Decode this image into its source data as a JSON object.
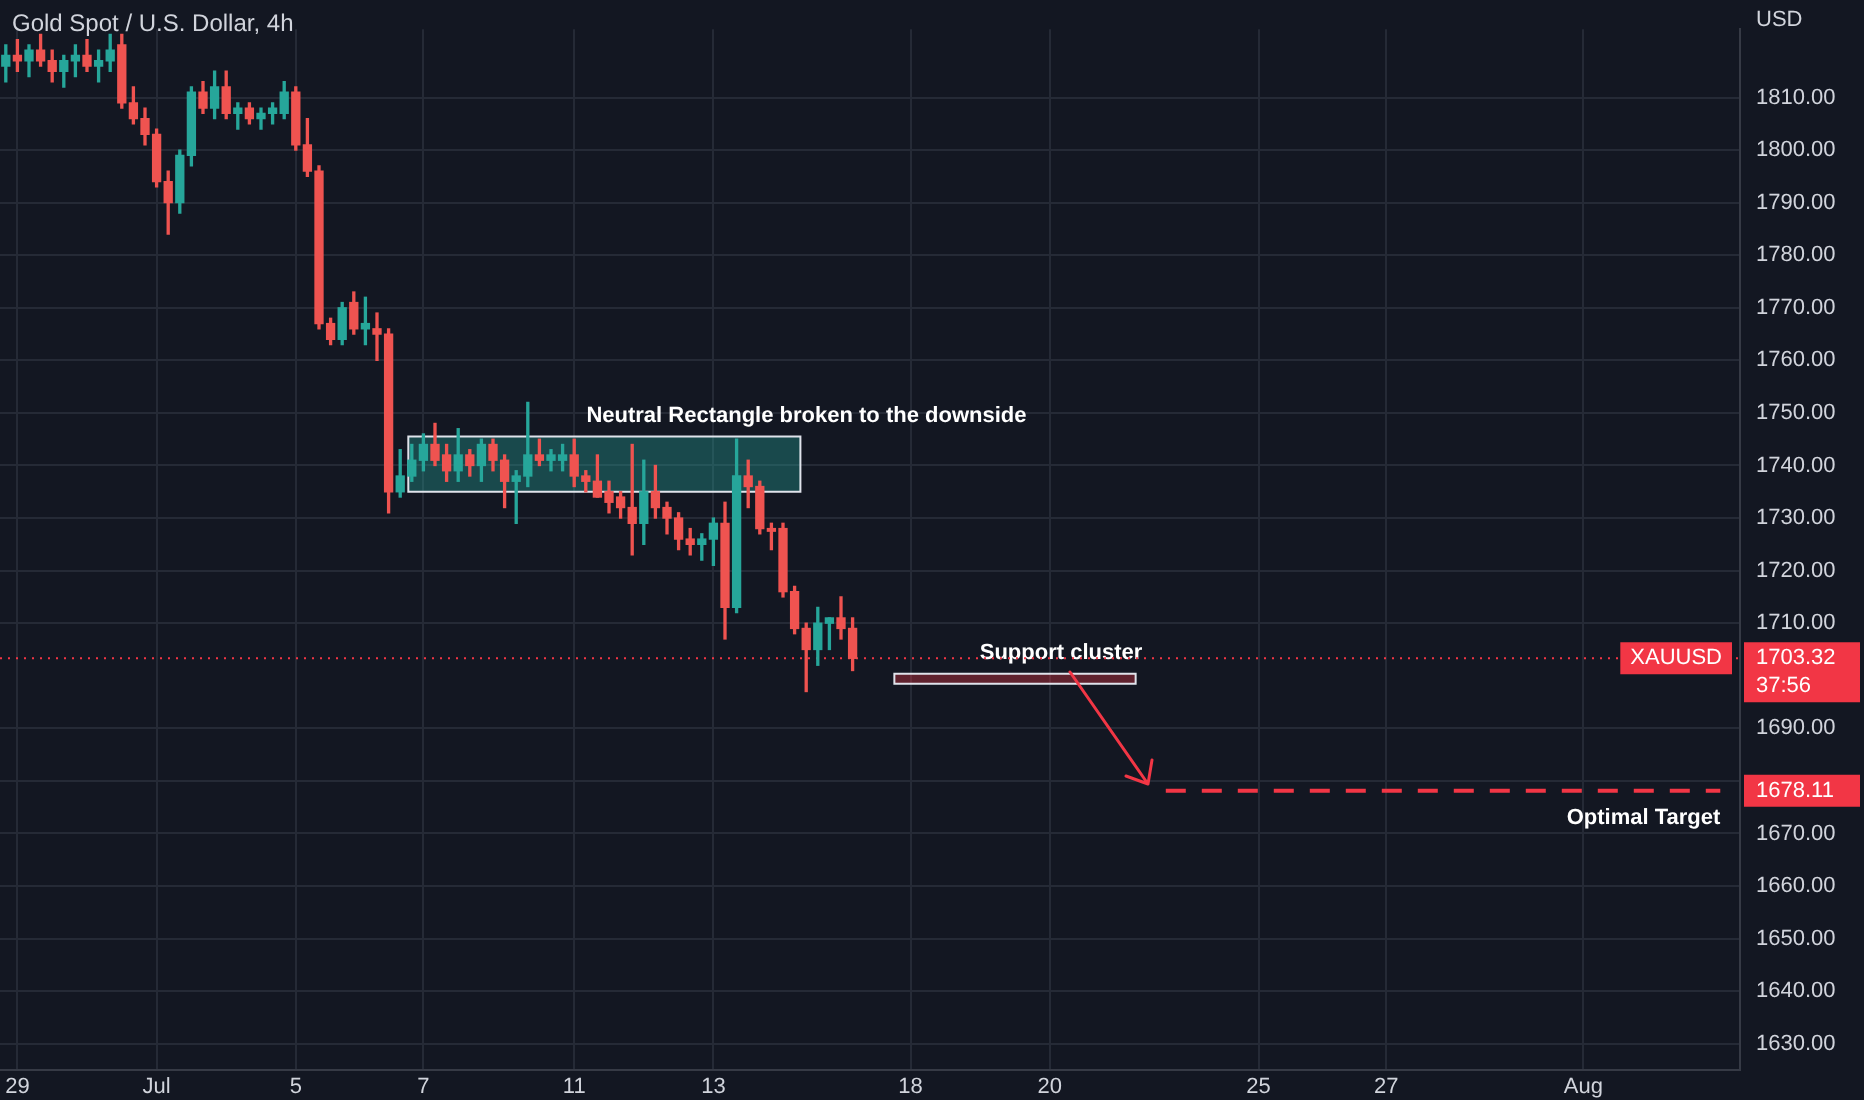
{
  "chart_data": {
    "type": "candlestick",
    "title": "Gold Spot / U.S. Dollar, 4h",
    "ylabel": "USD",
    "categories": [
      null,
      "29",
      null,
      null,
      null,
      null,
      null,
      null,
      null,
      null,
      null,
      null,
      null,
      "Jul",
      null,
      null,
      null,
      null,
      null,
      null,
      null,
      null,
      null,
      null,
      null,
      "5",
      null,
      null,
      null,
      null,
      null,
      null,
      null,
      null,
      null,
      null,
      "7",
      null,
      null,
      null,
      null,
      null,
      null,
      null,
      null,
      null,
      null,
      null,
      null,
      "11",
      null,
      null,
      null,
      null,
      null,
      null,
      null,
      null,
      null,
      null,
      null,
      "13",
      null,
      null,
      null,
      null,
      null,
      null,
      null,
      null,
      null,
      null,
      null,
      null,
      null,
      null,
      null,
      null,
      "18",
      null,
      null,
      null,
      null,
      null,
      null,
      null,
      null,
      null,
      null,
      null,
      "20",
      null,
      null,
      null,
      null,
      null,
      null,
      null,
      null,
      null,
      null,
      null,
      null,
      null,
      null,
      null,
      null,
      null,
      "25",
      null,
      null,
      null,
      null,
      null,
      null,
      null,
      null,
      null,
      null,
      "27",
      null,
      null,
      null,
      null,
      null,
      null,
      null,
      null,
      null,
      null,
      null,
      null,
      null,
      null,
      null,
      null,
      "Aug",
      null,
      null,
      null,
      null,
      null,
      null,
      null,
      null,
      null,
      null,
      null,
      null,
      null
    ],
    "ohlc": [
      [
        1816,
        1820,
        1813,
        1818
      ],
      [
        1818,
        1821,
        1815,
        1817
      ],
      [
        1817,
        1820,
        1814,
        1819
      ],
      [
        1819,
        1822,
        1816,
        1817
      ],
      [
        1817,
        1819,
        1813,
        1815
      ],
      [
        1815,
        1818,
        1812,
        1817
      ],
      [
        1817,
        1820,
        1814,
        1818
      ],
      [
        1818,
        1821,
        1815,
        1816
      ],
      [
        1816,
        1819,
        1813,
        1817
      ],
      [
        1817,
        1822,
        1815,
        1819
      ],
      [
        1820,
        1822,
        1808,
        1809
      ],
      [
        1809,
        1812,
        1805,
        1806
      ],
      [
        1806,
        1808,
        1801,
        1803
      ],
      [
        1803,
        1804,
        1793,
        1794
      ],
      [
        1794,
        1796,
        1784,
        1790
      ],
      [
        1790,
        1800,
        1788,
        1799
      ],
      [
        1799,
        1812,
        1797,
        1811
      ],
      [
        1811,
        1813,
        1807,
        1808
      ],
      [
        1808,
        1815,
        1806,
        1812
      ],
      [
        1812,
        1815,
        1806,
        1807
      ],
      [
        1807,
        1809,
        1804,
        1808
      ],
      [
        1808,
        1809,
        1805,
        1806
      ],
      [
        1806,
        1808,
        1804,
        1807
      ],
      [
        1807,
        1809,
        1805,
        1808
      ],
      [
        1807,
        1813,
        1806,
        1811
      ],
      [
        1811,
        1812,
        1800,
        1801
      ],
      [
        1801,
        1806,
        1795,
        1796
      ],
      [
        1796,
        1797,
        1766,
        1767
      ],
      [
        1767,
        1768,
        1763,
        1764
      ],
      [
        1764,
        1771,
        1763,
        1770
      ],
      [
        1771,
        1773,
        1765,
        1766
      ],
      [
        1766,
        1772,
        1763,
        1767
      ],
      [
        1766,
        1769,
        1760,
        1765
      ],
      [
        1765,
        1766,
        1731,
        1735
      ],
      [
        1735,
        1743,
        1734,
        1738
      ],
      [
        1738,
        1744,
        1737,
        1741
      ],
      [
        1741,
        1746,
        1739,
        1744
      ],
      [
        1744,
        1748,
        1740,
        1741
      ],
      [
        1742,
        1744,
        1737,
        1739
      ],
      [
        1739,
        1747,
        1737,
        1742
      ],
      [
        1742,
        1743,
        1738,
        1740
      ],
      [
        1740,
        1745,
        1737,
        1744
      ],
      [
        1744,
        1745,
        1739,
        1741
      ],
      [
        1741,
        1742,
        1732,
        1737
      ],
      [
        1737,
        1739,
        1729,
        1738
      ],
      [
        1738,
        1752,
        1736,
        1742
      ],
      [
        1742,
        1745,
        1740,
        1741
      ],
      [
        1741,
        1743,
        1739,
        1742
      ],
      [
        1741,
        1744,
        1739,
        1742
      ],
      [
        1742,
        1745,
        1736,
        1738
      ],
      [
        1738,
        1739,
        1735,
        1737
      ],
      [
        1737,
        1742,
        1734,
        1734
      ],
      [
        1735,
        1737,
        1731,
        1733
      ],
      [
        1734,
        1735,
        1730,
        1732
      ],
      [
        1732,
        1744,
        1723,
        1729
      ],
      [
        1729,
        1741,
        1725,
        1735
      ],
      [
        1735,
        1740,
        1730,
        1732
      ],
      [
        1732,
        1733,
        1727,
        1730
      ],
      [
        1730,
        1731,
        1724,
        1726
      ],
      [
        1726,
        1728,
        1723,
        1725
      ],
      [
        1725,
        1727,
        1722,
        1726
      ],
      [
        1726,
        1730,
        1721,
        1729
      ],
      [
        1729,
        1733,
        1707,
        1713
      ],
      [
        1713,
        1745,
        1712,
        1738
      ],
      [
        1738,
        1741,
        1732,
        1736
      ],
      [
        1736,
        1737,
        1727,
        1728
      ],
      [
        1728,
        1729,
        1724,
        1727.5
      ],
      [
        1728,
        1729,
        1715,
        1716
      ],
      [
        1716,
        1717,
        1708,
        1709
      ],
      [
        1709,
        1710,
        1697,
        1705
      ],
      [
        1705,
        1713,
        1702,
        1710
      ],
      [
        1710,
        1711,
        1705,
        1711
      ],
      [
        1711,
        1715,
        1707,
        1709
      ],
      [
        1709,
        1711,
        1701,
        1703.32
      ],
      null,
      null,
      null,
      null,
      null,
      null,
      null,
      null,
      null,
      null,
      null,
      null,
      null,
      null,
      null,
      null,
      null,
      null,
      null,
      null,
      null,
      null,
      null,
      null,
      null,
      null,
      null,
      null,
      null,
      null,
      null,
      null,
      null,
      null,
      null,
      null,
      null,
      null,
      null,
      null,
      null,
      null,
      null,
      null,
      null,
      null,
      null,
      null,
      null,
      null,
      null,
      null,
      null,
      null,
      null,
      null,
      null,
      null,
      null,
      null,
      null,
      null,
      null,
      null,
      null,
      null,
      null,
      null,
      null,
      null,
      null,
      null,
      null,
      null,
      null,
      null
    ],
    "ylim": [
      1625,
      1823
    ],
    "yticks": [
      {
        "value": 1630,
        "label": "1630.00"
      },
      {
        "value": 1640,
        "label": "1640.00"
      },
      {
        "value": 1650,
        "label": "1650.00"
      },
      {
        "value": 1660,
        "label": "1660.00"
      },
      {
        "value": 1670,
        "label": "1670.00"
      },
      {
        "value": 1680,
        "label": null
      },
      {
        "value": 1690,
        "label": "1690.00"
      },
      {
        "value": 1710,
        "label": "1710.00"
      },
      {
        "value": 1720,
        "label": "1720.00"
      },
      {
        "value": 1730,
        "label": "1730.00"
      },
      {
        "value": 1740,
        "label": "1740.00"
      },
      {
        "value": 1750,
        "label": "1750.00"
      },
      {
        "value": 1760,
        "label": "1760.00"
      },
      {
        "value": 1770,
        "label": "1770.00"
      },
      {
        "value": 1780,
        "label": "1780.00"
      },
      {
        "value": 1790,
        "label": "1790.00"
      },
      {
        "value": 1800,
        "label": "1800.00"
      },
      {
        "value": 1810,
        "label": "1810.00"
      }
    ],
    "grid": true,
    "ref_lines": [
      {
        "axis": "y",
        "value": 1703.32,
        "label": "XAUUSD",
        "color": "#f23645",
        "line_style": "dotted"
      },
      {
        "axis": "y",
        "value": 1678.11,
        "label": "Optimal Target",
        "color": "#f23645",
        "line_style": "dashed"
      }
    ],
    "bands": [
      {
        "axis": "y",
        "from": 1735,
        "to": 1745.5,
        "label": "Neutral Rectangle broken to the downside",
        "color": "#26a69a"
      },
      {
        "axis": "y",
        "from": 1698.5,
        "to": 1700.4,
        "label": "Support cluster",
        "color": "#f23645"
      }
    ],
    "annotations": [
      "1703.32",
      "37:56",
      "1678.11"
    ]
  }
}
